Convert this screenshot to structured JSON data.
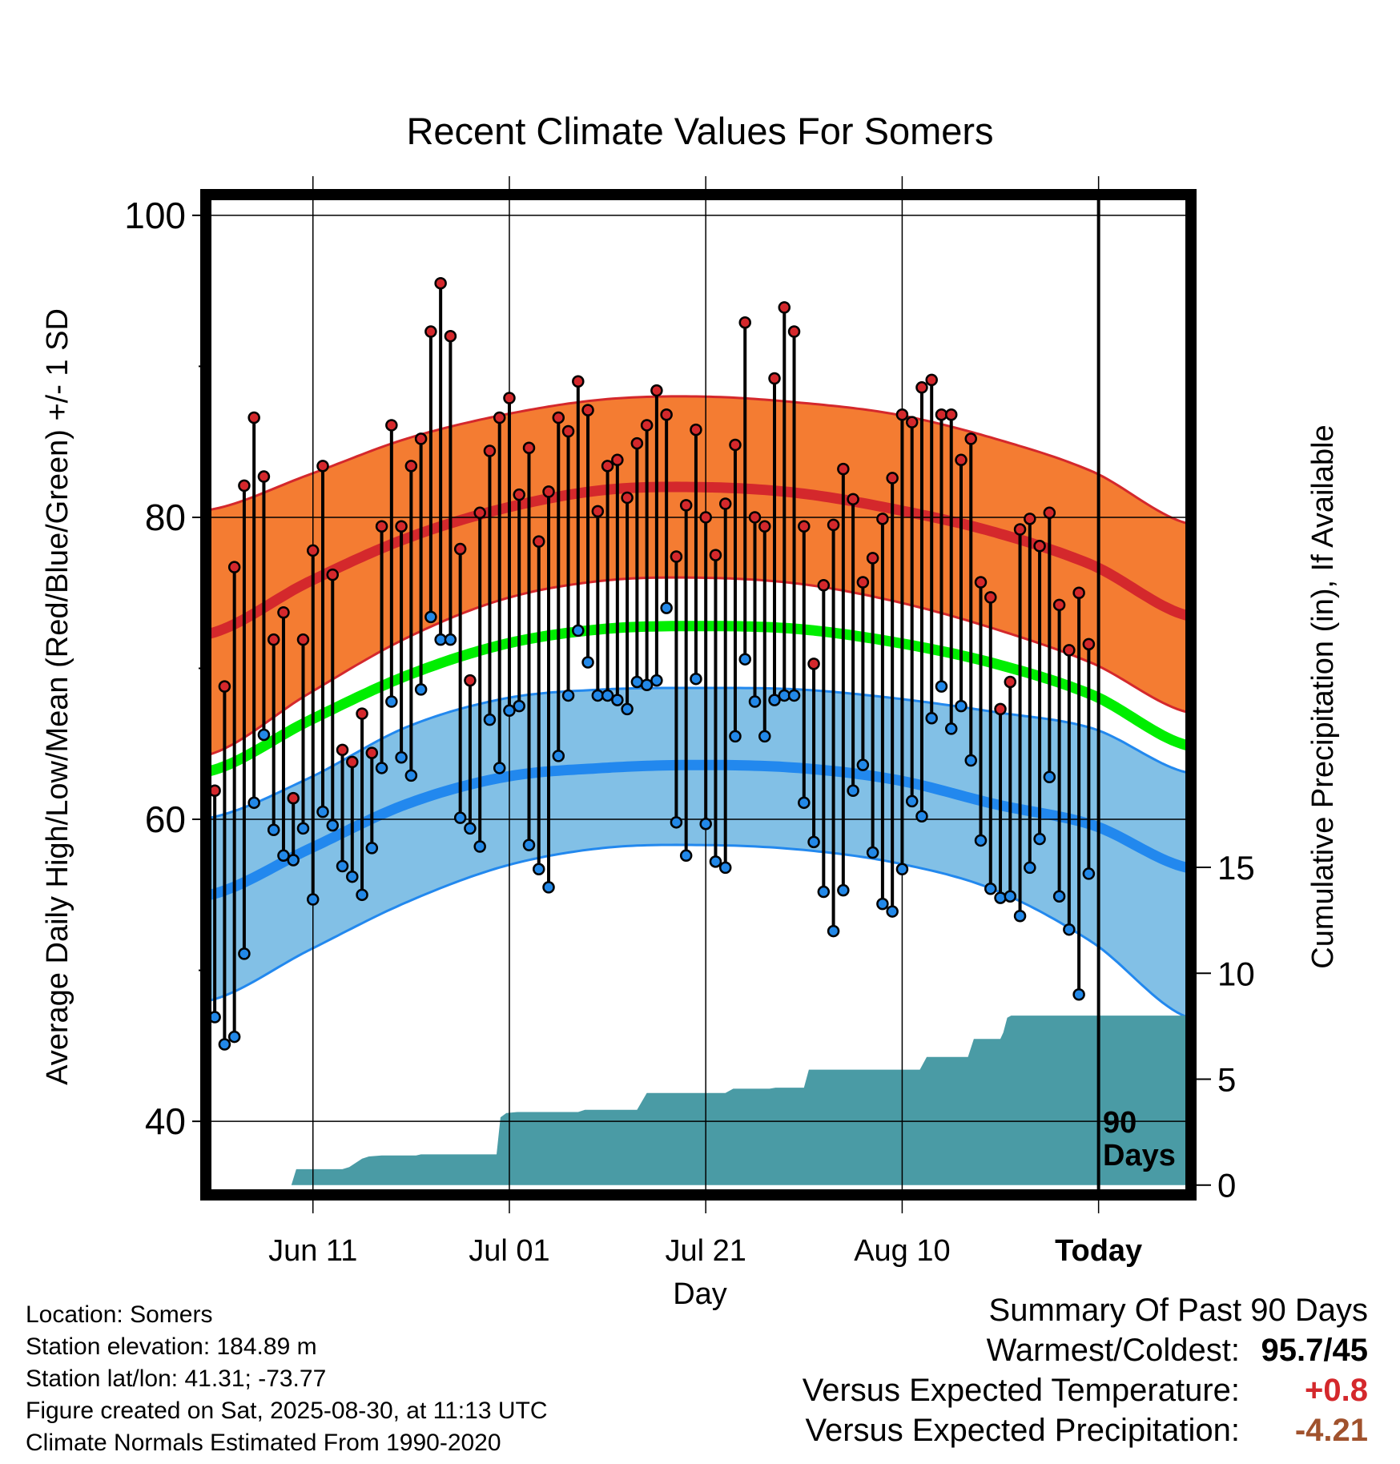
{
  "chart_data": {
    "type": "line",
    "title": "Recent Climate Values For Somers",
    "xlabel": "Day",
    "ylabel": "Average Daily High/Low/Mean (Red/Blue/Green) +/- 1 SD",
    "y2label": "Cumulative Precipitation (in), If Available",
    "ylim": [
      35.5,
      101
    ],
    "y2lim": [
      -0.2,
      46.5
    ],
    "xlim": [
      0,
      99.5
    ],
    "yticks": [
      40,
      60,
      80,
      100
    ],
    "y2ticks": [
      0,
      5,
      10,
      15
    ],
    "xticks": [
      {
        "day": 10.5,
        "label": "Jun 11"
      },
      {
        "day": 30.5,
        "label": "Jul 01"
      },
      {
        "day": 50.5,
        "label": "Jul 21"
      },
      {
        "day": 70.5,
        "label": "Aug 10"
      },
      {
        "day": 90.5,
        "label": "Today"
      }
    ],
    "today_day": 90.5,
    "today_label_line1": "90",
    "today_label_line2": "Days",
    "normals": {
      "day": [
        0,
        10,
        20,
        30,
        40,
        50,
        60,
        70,
        80,
        90,
        99.5
      ],
      "high_mean": [
        72.3,
        75.7,
        78.6,
        80.6,
        81.8,
        82.0,
        81.6,
        80.5,
        79.0,
        76.8,
        73.5
      ],
      "high_sd_upper": [
        80.5,
        82.8,
        85.2,
        86.8,
        87.8,
        88.0,
        87.6,
        86.8,
        85.2,
        83.0,
        79.6
      ],
      "high_sd_lower": [
        64.3,
        68.3,
        72.0,
        74.6,
        75.8,
        76.0,
        75.6,
        74.4,
        72.6,
        70.3,
        67.1
      ],
      "mean": [
        63.2,
        66.5,
        69.5,
        71.6,
        72.6,
        72.8,
        72.6,
        71.7,
        70.3,
        68.2,
        64.9
      ],
      "low_mean": [
        55.0,
        58.0,
        61.0,
        62.8,
        63.4,
        63.6,
        63.4,
        62.6,
        61.0,
        59.6,
        56.8
      ],
      "low_sd_upper": [
        60.1,
        62.7,
        66.1,
        68.0,
        68.6,
        68.7,
        68.6,
        68.0,
        67.1,
        66.0,
        63.1
      ],
      "low_sd_lower": [
        48.0,
        51.3,
        54.5,
        56.9,
        58.1,
        58.3,
        58.0,
        57.1,
        55.3,
        51.8,
        46.9
      ]
    },
    "series": [
      {
        "name": "High",
        "color": "#d4282c",
        "values": [
          61.9,
          68.8,
          76.7,
          82.1,
          86.6,
          82.7,
          71.9,
          73.7,
          61.4,
          71.9,
          77.8,
          83.4,
          76.2,
          64.6,
          63.8,
          67.0,
          64.4,
          79.4,
          86.1,
          79.4,
          83.4,
          85.2,
          92.3,
          95.5,
          92.0,
          77.9,
          69.2,
          80.3,
          84.4,
          86.6,
          87.9,
          81.5,
          84.6,
          78.4,
          81.7,
          86.6,
          85.7,
          89.0,
          87.1,
          80.4,
          83.4,
          83.8,
          81.3,
          84.9,
          86.1,
          88.4,
          86.8,
          77.4,
          80.8,
          85.8,
          80.0,
          77.5,
          80.9,
          84.8,
          92.9,
          80.0,
          79.4,
          89.2,
          93.9,
          92.3,
          79.4,
          70.3,
          75.5,
          79.5,
          83.2,
          81.2,
          75.7,
          77.3,
          79.9,
          82.6,
          86.8,
          86.3,
          88.6,
          89.1,
          86.8,
          86.8,
          83.8,
          85.2,
          75.7,
          74.7,
          67.3,
          69.1,
          79.2,
          79.9,
          78.1,
          80.3,
          74.2,
          71.2,
          75.0,
          71.6
        ]
      },
      {
        "name": "Low",
        "color": "#2288e8",
        "values": [
          46.9,
          45.1,
          45.6,
          51.1,
          61.1,
          65.6,
          59.3,
          57.6,
          57.3,
          59.4,
          54.7,
          60.5,
          59.6,
          56.9,
          56.2,
          55.0,
          58.1,
          63.4,
          67.8,
          64.1,
          62.9,
          68.6,
          73.4,
          71.9,
          71.9,
          60.1,
          59.4,
          58.2,
          66.6,
          63.4,
          67.2,
          67.5,
          58.3,
          56.7,
          55.5,
          64.2,
          68.2,
          72.5,
          70.4,
          68.2,
          68.2,
          67.9,
          67.3,
          69.1,
          68.9,
          69.2,
          74.0,
          59.8,
          57.6,
          69.3,
          59.7,
          57.2,
          56.8,
          65.5,
          70.6,
          67.8,
          65.5,
          67.9,
          68.2,
          68.2,
          61.1,
          58.5,
          55.2,
          52.6,
          55.3,
          61.9,
          63.6,
          57.8,
          54.4,
          53.9,
          56.7,
          61.2,
          60.2,
          66.7,
          68.8,
          66.0,
          67.5,
          63.9,
          58.6,
          55.4,
          54.8,
          54.9,
          53.6,
          56.8,
          58.7,
          62.8,
          54.9,
          52.7,
          48.4,
          56.4
        ]
      },
      {
        "name": "Cumulative Precipitation",
        "color": "#4a9ba5",
        "days": [
          0,
          8.3,
          8.8,
          13.5,
          14.2,
          15.5,
          16.2,
          17.5,
          21.0,
          21.5,
          29.2,
          29.6,
          30.2,
          31.3,
          37.5,
          38.2,
          43.5,
          44.5,
          52.5,
          53.3,
          57.0,
          57.6,
          60.5,
          61.0,
          72.3,
          73.0,
          77.2,
          77.8,
          80.5,
          80.8,
          81.2,
          81.6,
          99.5
        ],
        "values": [
          0,
          0,
          0.75,
          0.75,
          0.85,
          1.25,
          1.35,
          1.4,
          1.4,
          1.45,
          1.45,
          3.2,
          3.4,
          3.45,
          3.45,
          3.55,
          3.55,
          4.35,
          4.35,
          4.55,
          4.55,
          4.6,
          4.6,
          5.45,
          5.45,
          6.05,
          6.05,
          6.9,
          6.9,
          7.2,
          7.9,
          8.0,
          8.0
        ]
      }
    ],
    "grid": true,
    "legend": "none"
  },
  "info": {
    "location": "Location: Somers",
    "elevation": "Station elevation: 184.89 m",
    "latlon": "Station lat/lon: 41.31; -73.77",
    "created": "Figure created on Sat, 2025-08-30, at 11:13 UTC",
    "normals": "Climate Normals Estimated From 1990-2020"
  },
  "summary": {
    "heading": "Summary Of Past 90 Days",
    "warm_cold_label": "Warmest/Coldest:",
    "warm_cold_value": "95.7/45",
    "temp_label": "Versus Expected Temperature:",
    "temp_value": "+0.8",
    "temp_color": "#d4282c",
    "precip_label": "Versus Expected Precipitation:",
    "precip_value": "-4.21",
    "precip_color": "#a0522d"
  },
  "colors": {
    "high_band": "#f47c32",
    "high_line": "#d4282c",
    "mean_line": "#00ee00",
    "low_band": "#82c0e6",
    "low_line": "#2288ee",
    "precip_fill": "#4a9ba5"
  }
}
